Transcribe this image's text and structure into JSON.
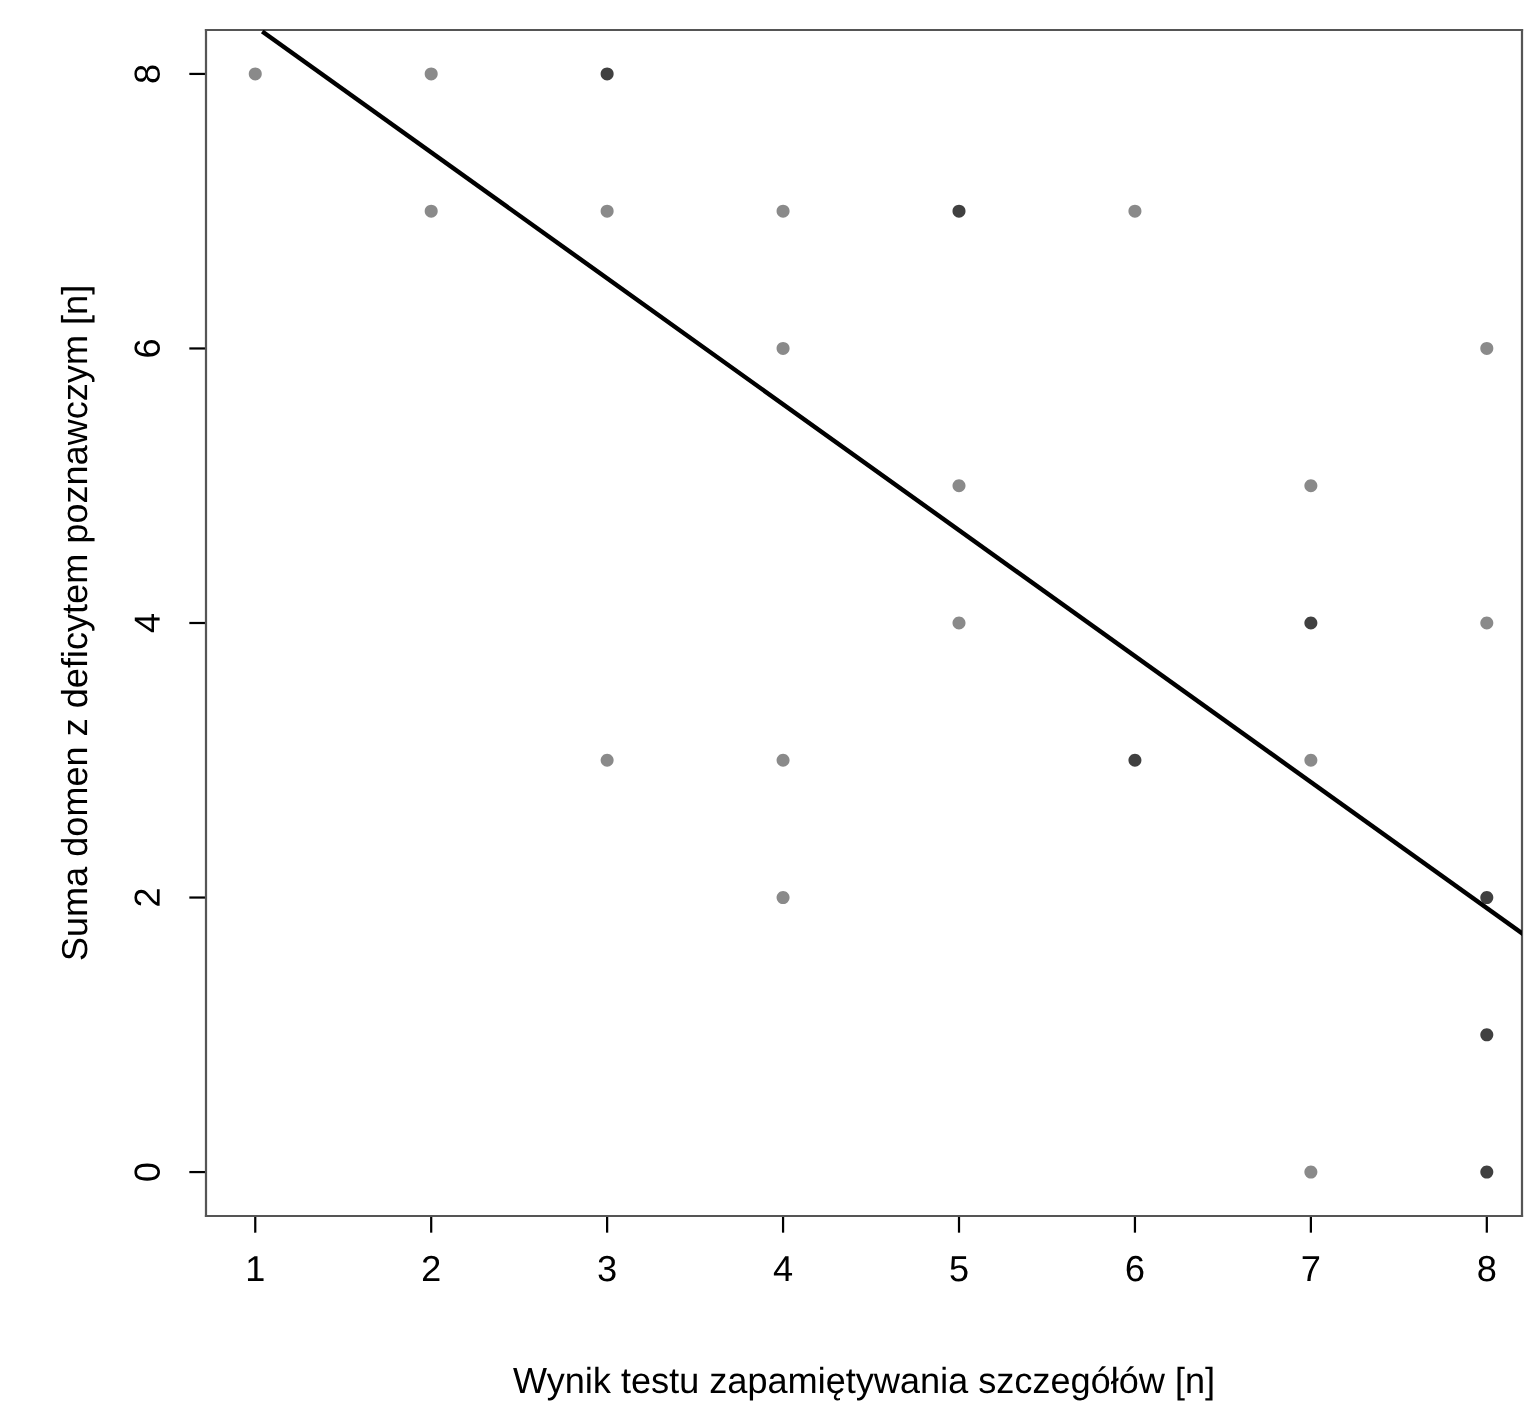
{
  "chart_data": {
    "type": "scatter",
    "xlabel": "Wynik testu zapamiętywania szczegółów [n]",
    "ylabel": "Suma domen z deficytem poznawczym [n]",
    "xlim": [
      0.72,
      8.2
    ],
    "ylim": [
      -0.32,
      8.32
    ],
    "xticks": [
      1,
      2,
      3,
      4,
      5,
      6,
      7,
      8
    ],
    "yticks": [
      0,
      2,
      4,
      6,
      8
    ],
    "grid": false,
    "legend": false,
    "marker": "circle",
    "series": [
      {
        "x": [
          1,
          2,
          2,
          3,
          3,
          3,
          4,
          4,
          4,
          4,
          5,
          5,
          5,
          6,
          6,
          7,
          7,
          7,
          7,
          8,
          8,
          8,
          8,
          8
        ],
        "values": [
          8,
          8,
          7,
          8,
          7,
          3,
          7,
          6,
          3,
          2,
          7,
          5,
          4,
          7,
          3,
          5,
          4,
          3,
          0,
          6,
          4,
          2,
          1,
          0
        ],
        "colors": [
          "#8a8a8a",
          "#8a8a8a",
          "#8a8a8a",
          "#404040",
          "#8a8a8a",
          "#8a8a8a",
          "#8a8a8a",
          "#8a8a8a",
          "#8a8a8a",
          "#8a8a8a",
          "#404040",
          "#8a8a8a",
          "#8a8a8a",
          "#8a8a8a",
          "#404040",
          "#8a8a8a",
          "#404040",
          "#8a8a8a",
          "#8a8a8a",
          "#8a8a8a",
          "#8a8a8a",
          "#404040",
          "#404040",
          "#404040"
        ]
      },
      {
        "type": "line",
        "x": [
          1.05,
          8.2
        ],
        "values": [
          8.3,
          1.74
        ],
        "color": "#000000",
        "line_style": "solid",
        "marker": "none"
      }
    ]
  }
}
